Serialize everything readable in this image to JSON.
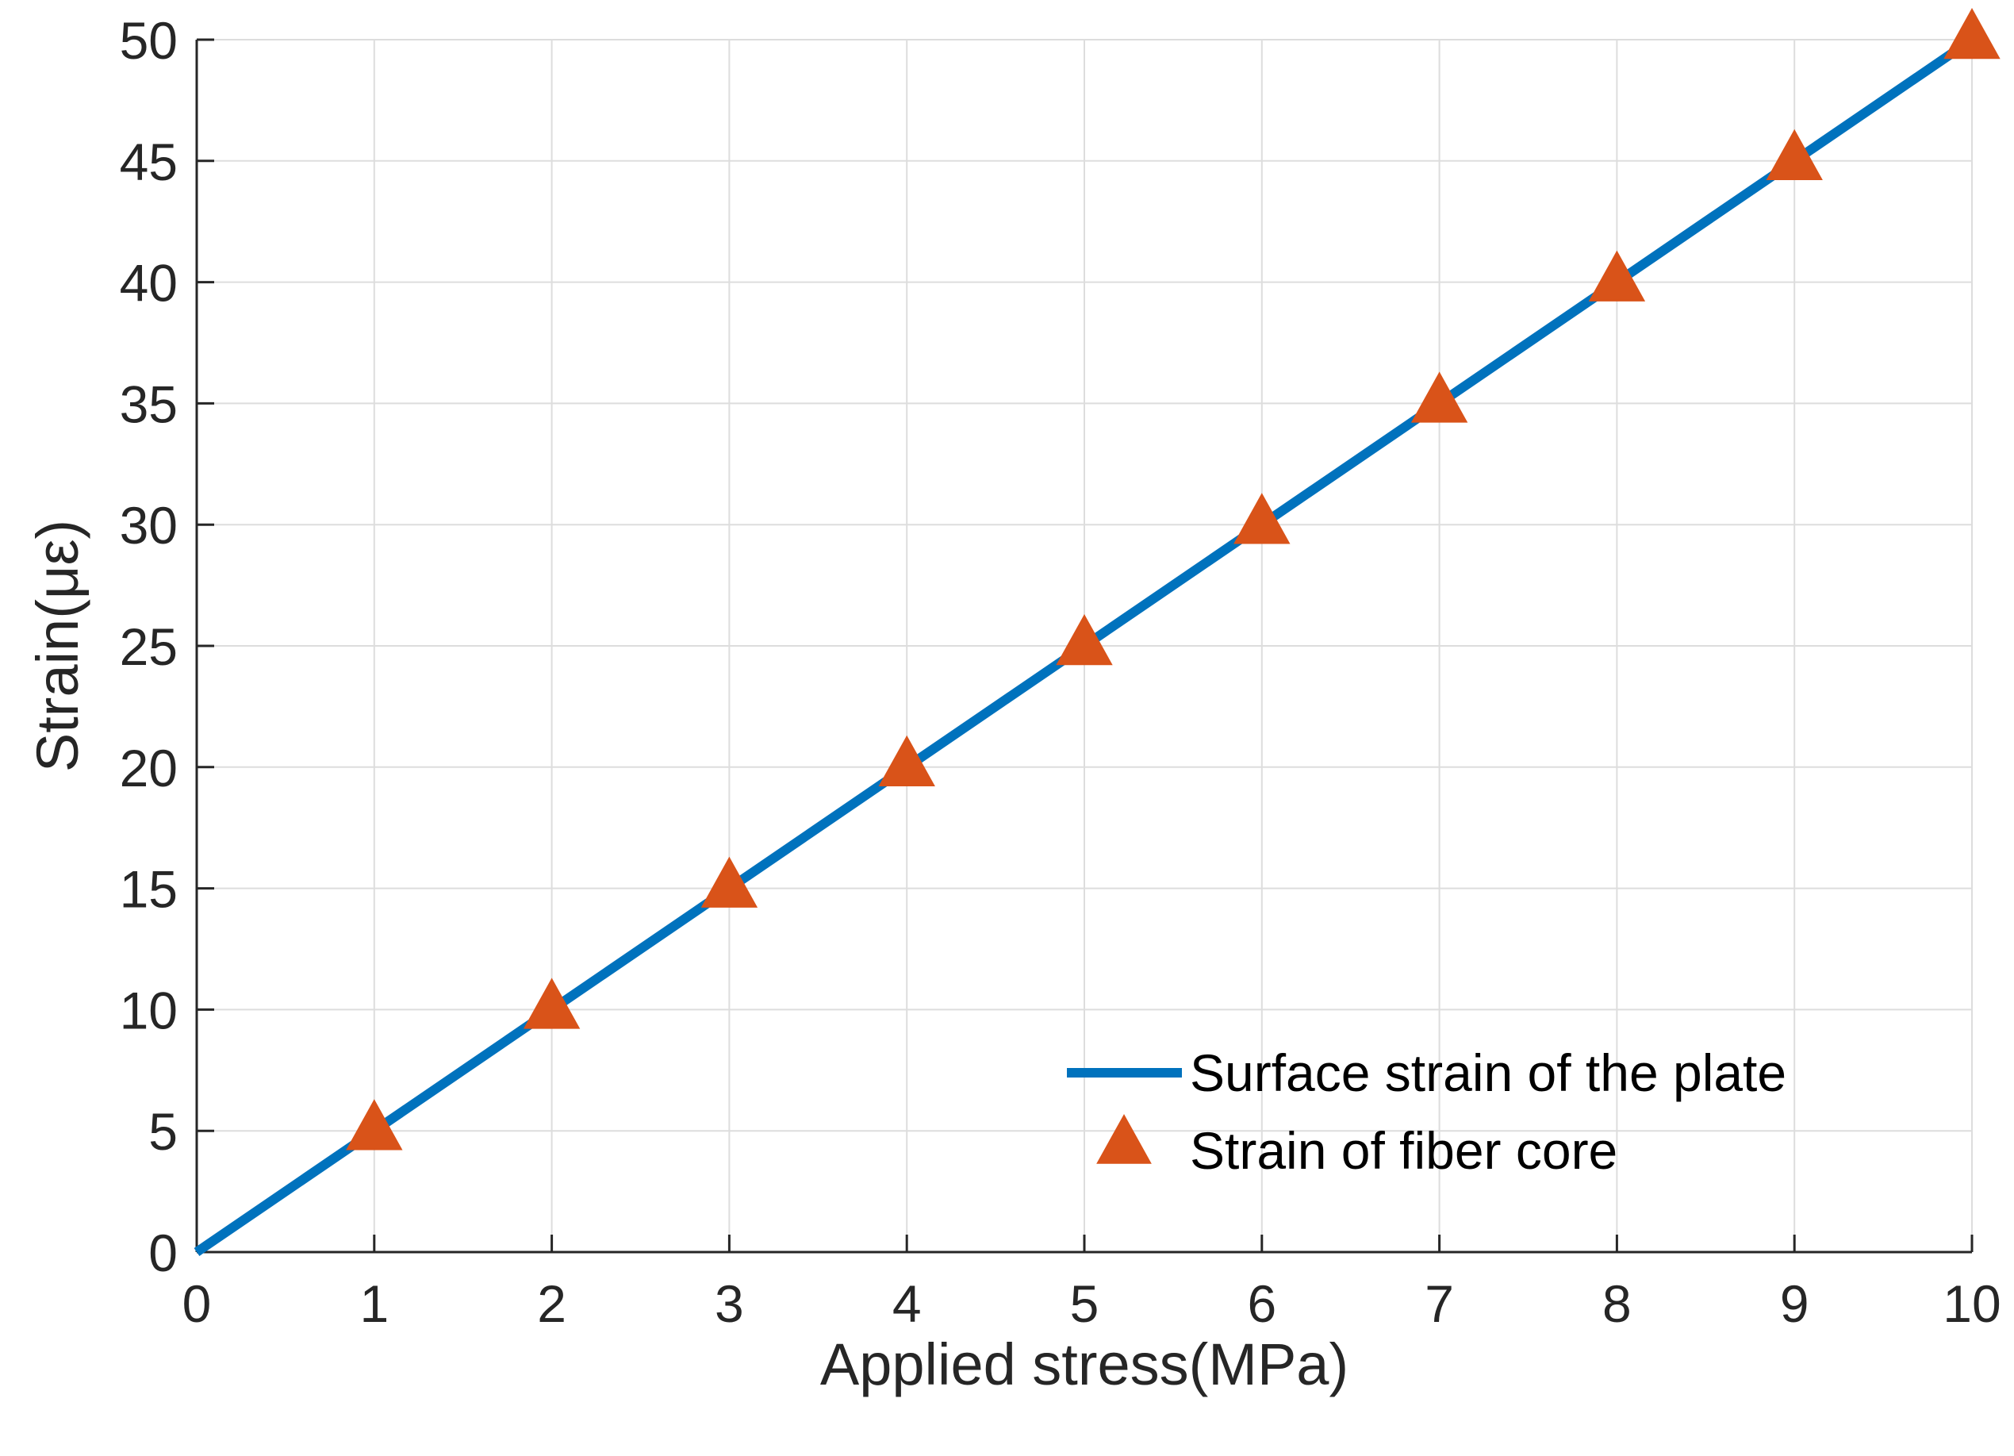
{
  "chart_data": {
    "type": "line",
    "title": "",
    "xlabel": "Applied stress(MPa)",
    "ylabel": "Strain(με)",
    "xlim": [
      0,
      10
    ],
    "ylim": [
      0,
      50
    ],
    "xticks": [
      0,
      1,
      2,
      3,
      4,
      5,
      6,
      7,
      8,
      9,
      10
    ],
    "yticks": [
      0,
      5,
      10,
      15,
      20,
      25,
      30,
      35,
      40,
      45,
      50
    ],
    "grid": true,
    "legend_position": "bottom-right",
    "series": [
      {
        "name": "Surface strain of the plate",
        "type": "line",
        "color": "#0072BD",
        "x": [
          0,
          10
        ],
        "y": [
          0,
          50
        ]
      },
      {
        "name": "Strain of fiber core",
        "type": "scatter",
        "marker": "triangle",
        "color": "#D95319",
        "x": [
          1,
          2,
          3,
          4,
          5,
          6,
          7,
          8,
          9,
          10
        ],
        "y": [
          5,
          10,
          15,
          20,
          25,
          30,
          35,
          40,
          45,
          50
        ]
      }
    ]
  }
}
